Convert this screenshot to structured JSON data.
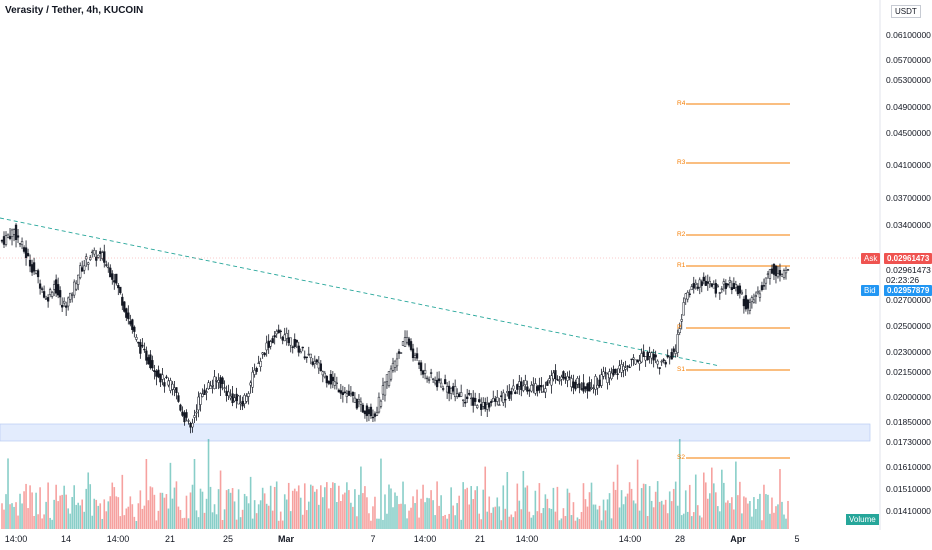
{
  "header": {
    "title": "Verasity / Tether, 4h, KUCOIN"
  },
  "price_scale": {
    "currency": "USDT",
    "labels": [
      "0.06100000",
      "0.05700000",
      "0.05300000",
      "0.04900000",
      "0.04500000",
      "0.04100000",
      "0.03700000",
      "0.03400000",
      "0.02700000",
      "0.02500000",
      "0.02300000",
      "0.02150000",
      "0.02000000",
      "0.01850000",
      "0.01730000",
      "0.01610000",
      "0.01510000",
      "0.01410000"
    ],
    "ask_label": "Ask",
    "ask_value": "0.02961473",
    "last_price": "0.02961473",
    "countdown": "02:23:26",
    "bid_label": "Bid",
    "bid_value": "0.02957879"
  },
  "time_axis": {
    "labels": [
      {
        "text": "14:00",
        "bold": false
      },
      {
        "text": "14",
        "bold": false
      },
      {
        "text": "14:00",
        "bold": false
      },
      {
        "text": "21",
        "bold": false
      },
      {
        "text": "25",
        "bold": false
      },
      {
        "text": "Mar",
        "bold": true
      },
      {
        "text": "7",
        "bold": false
      },
      {
        "text": "14:00",
        "bold": false
      },
      {
        "text": "21",
        "bold": false
      },
      {
        "text": "14:00",
        "bold": false
      },
      {
        "text": "14:00",
        "bold": false
      },
      {
        "text": "28",
        "bold": false
      },
      {
        "text": "Apr",
        "bold": true
      },
      {
        "text": "5",
        "bold": false
      }
    ]
  },
  "pivots": {
    "labels": [
      "R4",
      "R3",
      "R2",
      "R1",
      "P",
      "S1",
      "S2"
    ],
    "values": [
      0.049,
      0.041,
      0.0335,
      0.0296,
      0.0248,
      0.0217,
      0.0166
    ]
  },
  "volume": {
    "label": "Volume"
  },
  "chart_data": {
    "type": "candlestick",
    "symbol": "Verasity / Tether",
    "interval": "4h",
    "exchange": "KUCOIN",
    "price_axis_type": "log",
    "close_anchors": [
      [
        0,
        0.0325
      ],
      [
        6,
        0.0335
      ],
      [
        12,
        0.0312
      ],
      [
        18,
        0.029
      ],
      [
        22,
        0.027
      ],
      [
        26,
        0.0285
      ],
      [
        30,
        0.0265
      ],
      [
        34,
        0.0272
      ],
      [
        38,
        0.0295
      ],
      [
        44,
        0.0312
      ],
      [
        50,
        0.031
      ],
      [
        56,
        0.029
      ],
      [
        62,
        0.026
      ],
      [
        68,
        0.0235
      ],
      [
        74,
        0.0222
      ],
      [
        80,
        0.021
      ],
      [
        86,
        0.0205
      ],
      [
        90,
        0.019
      ],
      [
        94,
        0.0181
      ],
      [
        98,
        0.0198
      ],
      [
        102,
        0.0206
      ],
      [
        108,
        0.021
      ],
      [
        114,
        0.02
      ],
      [
        120,
        0.0196
      ],
      [
        126,
        0.0215
      ],
      [
        132,
        0.0235
      ],
      [
        138,
        0.0245
      ],
      [
        144,
        0.0238
      ],
      [
        150,
        0.023
      ],
      [
        156,
        0.0222
      ],
      [
        162,
        0.0212
      ],
      [
        168,
        0.0206
      ],
      [
        174,
        0.02
      ],
      [
        180,
        0.0193
      ],
      [
        186,
        0.019
      ],
      [
        192,
        0.021
      ],
      [
        198,
        0.023
      ],
      [
        202,
        0.024
      ],
      [
        206,
        0.0225
      ],
      [
        212,
        0.0212
      ],
      [
        220,
        0.0207
      ],
      [
        230,
        0.02
      ],
      [
        240,
        0.0195
      ],
      [
        250,
        0.0199
      ],
      [
        260,
        0.0208
      ],
      [
        268,
        0.0204
      ],
      [
        276,
        0.0214
      ],
      [
        282,
        0.021
      ],
      [
        292,
        0.0206
      ],
      [
        302,
        0.0213
      ],
      [
        310,
        0.0218
      ],
      [
        318,
        0.0226
      ],
      [
        324,
        0.0229
      ],
      [
        328,
        0.022
      ],
      [
        332,
        0.0225
      ],
      [
        336,
        0.0232
      ],
      [
        340,
        0.0268
      ],
      [
        344,
        0.0282
      ],
      [
        350,
        0.0288
      ],
      [
        356,
        0.028
      ],
      [
        362,
        0.0285
      ],
      [
        368,
        0.0278
      ],
      [
        372,
        0.0262
      ],
      [
        376,
        0.0274
      ],
      [
        380,
        0.0286
      ],
      [
        384,
        0.0299
      ],
      [
        388,
        0.0293
      ],
      [
        392,
        0.0295
      ]
    ],
    "volume_note": "relative bar heights, red = down candle, green = up candle"
  },
  "colors": {
    "up": "#26a69a",
    "down": "#ef5350",
    "candle": "#131722",
    "pivot": "#f57c00",
    "trendline": "#26a69a",
    "zone": "#e3ecfd",
    "zone_border": "#b9ccf3"
  }
}
